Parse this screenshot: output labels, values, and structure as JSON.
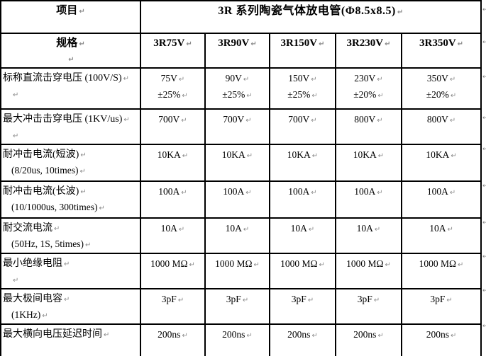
{
  "header": {
    "item_label": "项目",
    "title": "3R 系列陶瓷气体放电管(Φ8.5x8.5)",
    "spec_label": "规格",
    "models": [
      "3R75V",
      "3R90V",
      "3R150V",
      "3R230V",
      "3R350V"
    ]
  },
  "rows": [
    {
      "label": "标称直流击穿电压 (100V/S)",
      "sub": "",
      "values": [
        [
          "75V",
          "±25%"
        ],
        [
          "90V",
          "±25%"
        ],
        [
          "150V",
          "±25%"
        ],
        [
          "230V",
          "±20%"
        ],
        [
          "350V",
          "±20%"
        ]
      ]
    },
    {
      "label": "最大冲击击穿电压 (1KV/us)",
      "sub": "",
      "values": [
        [
          "700V"
        ],
        [
          "700V"
        ],
        [
          "700V"
        ],
        [
          "800V"
        ],
        [
          "800V"
        ]
      ]
    },
    {
      "label": "耐冲击电流(短波)",
      "sub": "(8/20us, 10times)",
      "values": [
        [
          "10KA"
        ],
        [
          "10KA"
        ],
        [
          "10KA"
        ],
        [
          "10KA"
        ],
        [
          "10KA"
        ]
      ]
    },
    {
      "label": "耐冲击电流(长波)",
      "sub": "(10/1000us, 300times)",
      "values": [
        [
          "100A"
        ],
        [
          "100A"
        ],
        [
          "100A"
        ],
        [
          "100A"
        ],
        [
          "100A"
        ]
      ]
    },
    {
      "label": "耐交流电流",
      "sub": "(50Hz, 1S, 5times)",
      "values": [
        [
          "10A"
        ],
        [
          "10A"
        ],
        [
          "10A"
        ],
        [
          "10A"
        ],
        [
          "10A"
        ]
      ]
    },
    {
      "label": "最小绝缘电阻",
      "sub": "",
      "values": [
        [
          "1000 MΩ"
        ],
        [
          "1000 MΩ"
        ],
        [
          "1000 MΩ"
        ],
        [
          "1000 MΩ"
        ],
        [
          "1000 MΩ"
        ]
      ]
    },
    {
      "label": "最大极间电容",
      "sub": "(1KHz)",
      "values": [
        [
          "3pF"
        ],
        [
          "3pF"
        ],
        [
          "3pF"
        ],
        [
          "3pF"
        ],
        [
          "3pF"
        ]
      ]
    },
    {
      "label": "最大横向电压延迟时间",
      "values": [
        [
          "200ns"
        ],
        [
          "200ns"
        ],
        [
          "200ns"
        ],
        [
          "200ns"
        ],
        [
          "200ns"
        ]
      ]
    }
  ],
  "icons": {
    "paragraph_mark": "↵",
    "row_end_mark": "↵"
  },
  "colors": {
    "text": "#000000",
    "border": "#000000",
    "formatting_mark": "#8b8b8b",
    "background": "#ffffff"
  }
}
